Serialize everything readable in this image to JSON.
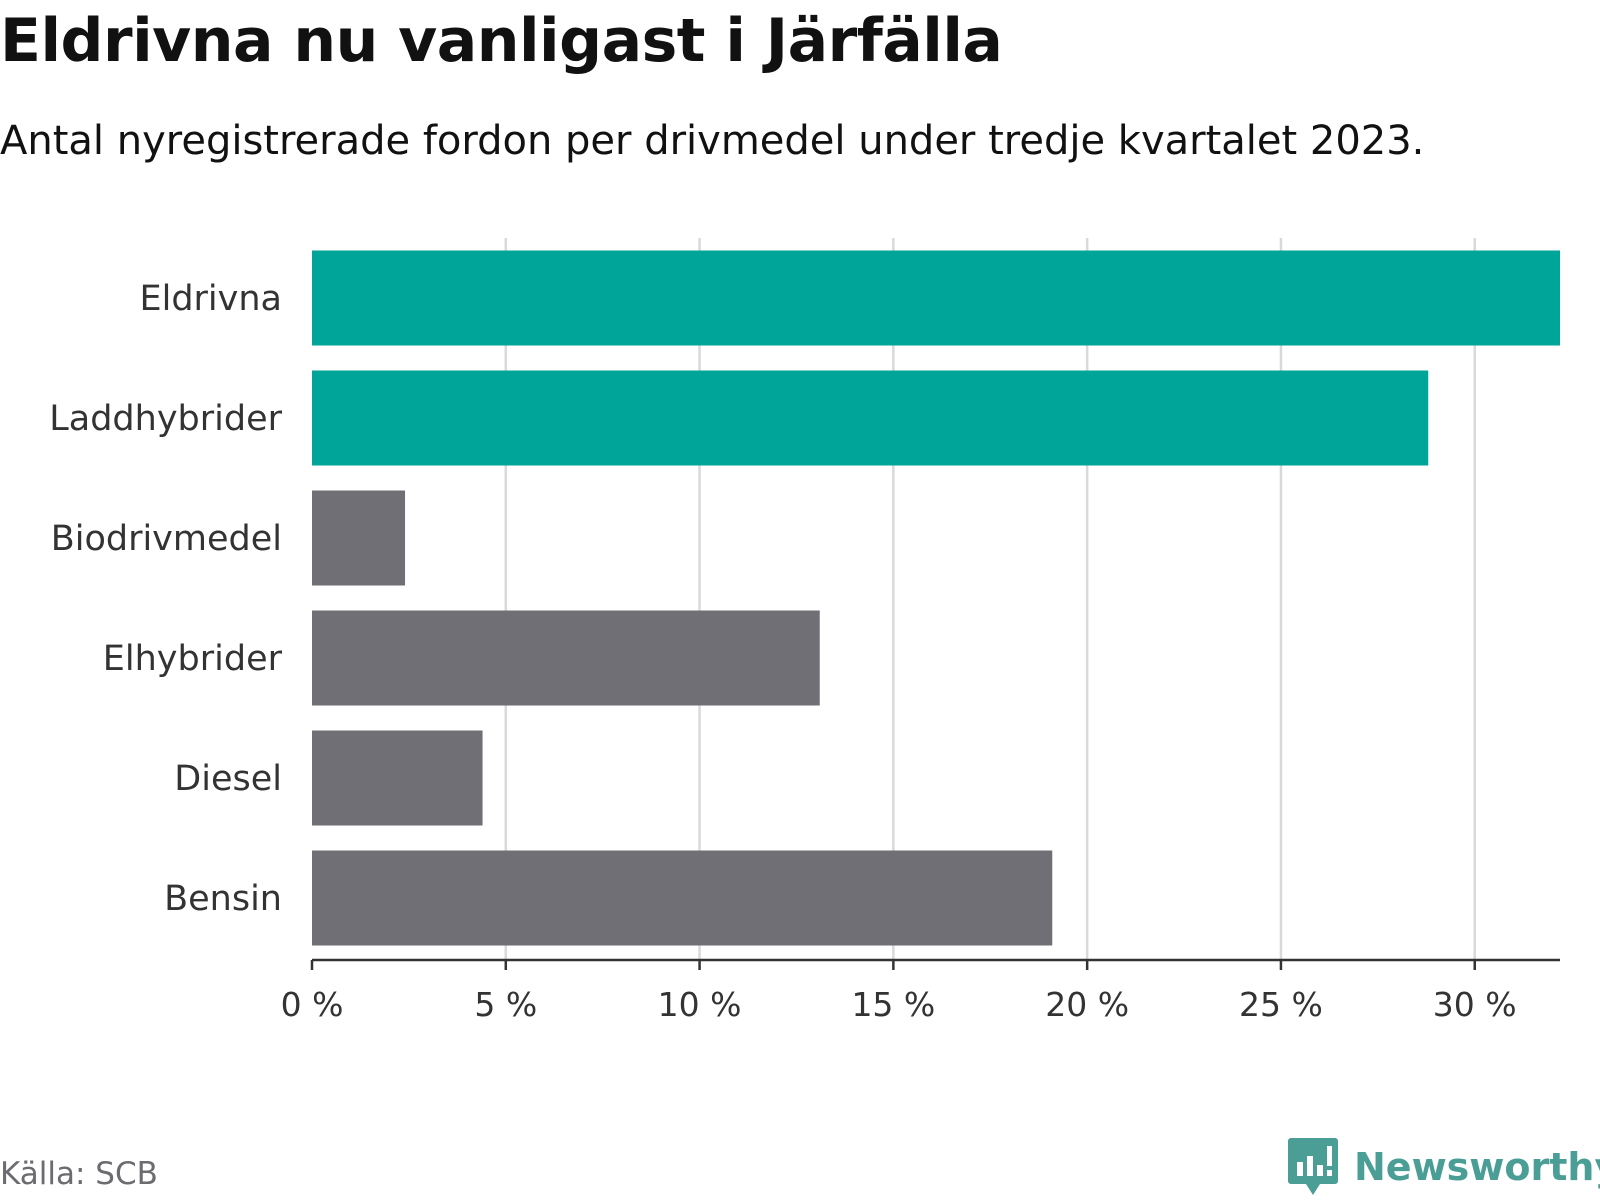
{
  "title": "Eldrivna nu vanligast i Järfälla",
  "subtitle": "Antal nyregistrerade fordon per drivmedel under tredje kvartalet 2023.",
  "source": "Källa: SCB",
  "brand": {
    "name": "Newsworthy",
    "icon": "newsworthy-logo-icon",
    "color": "#4a9e96"
  },
  "chart_data": {
    "type": "bar",
    "orientation": "horizontal",
    "title": "Eldrivna nu vanligast i Järfälla",
    "xlabel": "",
    "ylabel": "",
    "xlim": [
      0,
      32.2
    ],
    "grid": true,
    "categories": [
      "Eldrivna",
      "Laddhybrider",
      "Biodrivmedel",
      "Elhybrider",
      "Diesel",
      "Bensin"
    ],
    "values": [
      32.2,
      28.8,
      2.4,
      13.1,
      4.4,
      19.1
    ],
    "unit": "%",
    "highlight": [
      "Eldrivna",
      "Laddhybrider"
    ],
    "colors": {
      "highlight": "#00a599",
      "default": "#6f6f75"
    },
    "xticks": [
      0,
      5,
      10,
      15,
      20,
      25,
      30
    ],
    "xtick_labels": [
      "0 %",
      "5 %",
      "10 %",
      "15 %",
      "20 %",
      "25 %",
      "30 %"
    ]
  }
}
